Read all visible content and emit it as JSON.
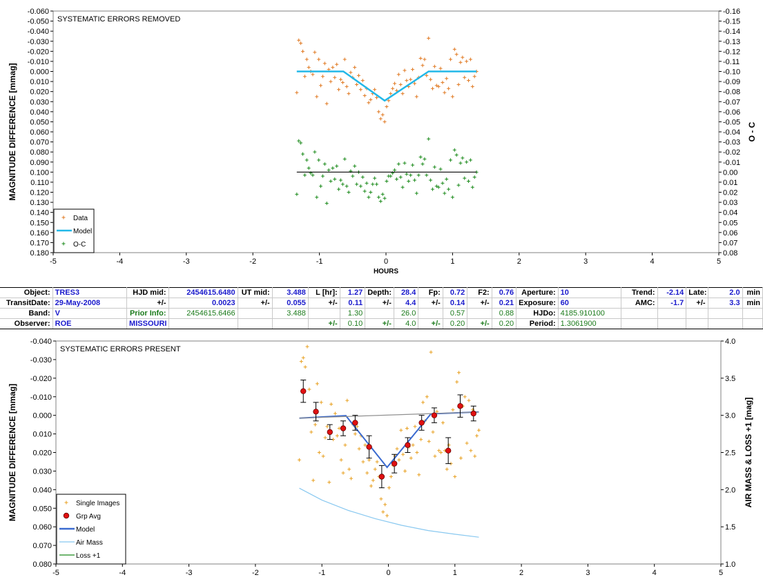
{
  "chart_data": [
    {
      "type": "scatter",
      "title": "SYSTEMATIC ERRORS REMOVED",
      "xlabel": "HOURS",
      "ylabel": "MAGNITUDE DIFFERENCE [mmag]",
      "y2label": "O - C",
      "xlim": [
        -5,
        5
      ],
      "ylim": [
        0.18,
        -0.06
      ],
      "y2lim": [
        0.08,
        -0.16
      ],
      "x_ticks": [
        "-5",
        "-4",
        "-3",
        "-2",
        "-1",
        "0",
        "1",
        "2",
        "3",
        "4",
        "5"
      ],
      "y_ticks": [
        "-0.060",
        "-0.050",
        "-0.040",
        "-0.030",
        "-0.020",
        "-0.010",
        "0.000",
        "0.010",
        "0.020",
        "0.030",
        "0.040",
        "0.050",
        "0.060",
        "0.070",
        "0.080",
        "0.090",
        "0.100",
        "0.110",
        "0.120",
        "0.130",
        "0.140",
        "0.150",
        "0.160",
        "0.170",
        "0.180"
      ],
      "y2_ticks": [
        "-0.16",
        "-0.15",
        "-0.14",
        "-0.13",
        "-0.12",
        "-0.11",
        "-0.10",
        "-0.09",
        "-0.08",
        "-0.07",
        "-0.06",
        "-0.05",
        "-0.04",
        "-0.03",
        "-0.02",
        "-0.01",
        "0.00",
        "0.01",
        "0.02",
        "0.03",
        "0.04",
        "0.05",
        "0.06",
        "0.07",
        "0.08"
      ],
      "grid": false,
      "legend_position": "bottom-left",
      "series": [
        {
          "name": "Data",
          "marker": "+",
          "color": "#e07820",
          "x": [
            -1.34,
            -1.31,
            -1.28,
            -1.25,
            -1.22,
            -1.19,
            -1.16,
            -1.13,
            -1.1,
            -1.07,
            -1.04,
            -1.01,
            -0.98,
            -0.95,
            -0.92,
            -0.89,
            -0.86,
            -0.83,
            -0.8,
            -0.77,
            -0.74,
            -0.71,
            -0.68,
            -0.65,
            -0.62,
            -0.59,
            -0.56,
            -0.53,
            -0.5,
            -0.47,
            -0.44,
            -0.41,
            -0.38,
            -0.35,
            -0.32,
            -0.29,
            -0.26,
            -0.23,
            -0.2,
            -0.17,
            -0.14,
            -0.11,
            -0.08,
            -0.05,
            -0.02,
            0.01,
            0.04,
            0.07,
            0.1,
            0.13,
            0.16,
            0.19,
            0.22,
            0.25,
            0.28,
            0.31,
            0.34,
            0.37,
            0.4,
            0.43,
            0.46,
            0.49,
            0.52,
            0.55,
            0.58,
            0.61,
            0.64,
            0.67,
            0.7,
            0.73,
            0.76,
            0.79,
            0.82,
            0.85,
            0.88,
            0.91,
            0.94,
            0.97,
            1.0,
            1.03,
            1.06,
            1.09,
            1.12,
            1.15,
            1.18,
            1.21,
            1.24,
            1.27,
            1.3,
            1.33,
            1.36
          ],
          "y": [
            0.021,
            -0.031,
            -0.028,
            -0.02,
            0.005,
            -0.012,
            -0.004,
            0.0,
            0.003,
            -0.019,
            0.025,
            -0.012,
            0.014,
            0.005,
            -0.008,
            0.032,
            -0.002,
            0.01,
            -0.004,
            0.006,
            -0.007,
            0.018,
            0.008,
            0.011,
            -0.012,
            0.015,
            0.022,
            0.001,
            0.006,
            -0.004,
            0.013,
            0.004,
            0.018,
            0.009,
            0.024,
            0.017,
            0.031,
            0.028,
            0.022,
            0.018,
            0.026,
            0.04,
            0.047,
            0.043,
            0.05,
            0.035,
            0.029,
            0.022,
            0.017,
            0.012,
            0.019,
            0.003,
            0.013,
            0.022,
            -0.001,
            0.009,
            0.015,
            0.008,
            -0.002,
            0.012,
            0.025,
            0.006,
            -0.013,
            -0.006,
            -0.012,
            0.004,
            -0.033,
            0.008,
            0.017,
            -0.005,
            0.014,
            0.015,
            -0.003,
            0.011,
            0.021,
            0.007,
            0.017,
            -0.012,
            0.025,
            -0.022,
            -0.017,
            0.013,
            -0.009,
            -0.014,
            0.006,
            -0.01,
            0.009,
            -0.012,
            0.015,
            0.005,
            0.0
          ]
        },
        {
          "name": "Model",
          "line": true,
          "color": "#22b8e8",
          "x": [
            -1.34,
            -0.64,
            -0.02,
            0.64,
            1.36
          ],
          "y": [
            0.0,
            0.0,
            0.029,
            0.0,
            0.0
          ]
        },
        {
          "name": "O-C",
          "marker": "+",
          "color": "#1a8a1a",
          "x": [
            -1.34,
            -1.31,
            -1.28,
            -1.25,
            -1.22,
            -1.19,
            -1.16,
            -1.13,
            -1.1,
            -1.07,
            -1.04,
            -1.01,
            -0.98,
            -0.95,
            -0.92,
            -0.89,
            -0.86,
            -0.83,
            -0.8,
            -0.77,
            -0.74,
            -0.71,
            -0.68,
            -0.65,
            -0.62,
            -0.59,
            -0.56,
            -0.53,
            -0.5,
            -0.47,
            -0.44,
            -0.41,
            -0.38,
            -0.35,
            -0.32,
            -0.29,
            -0.26,
            -0.23,
            -0.2,
            -0.17,
            -0.14,
            -0.11,
            -0.08,
            -0.05,
            -0.02,
            0.01,
            0.04,
            0.07,
            0.1,
            0.13,
            0.16,
            0.19,
            0.22,
            0.25,
            0.28,
            0.31,
            0.34,
            0.37,
            0.4,
            0.43,
            0.46,
            0.49,
            0.52,
            0.55,
            0.58,
            0.61,
            0.64,
            0.67,
            0.7,
            0.73,
            0.76,
            0.79,
            0.82,
            0.85,
            0.88,
            0.91,
            0.94,
            0.97,
            1.0,
            1.03,
            1.06,
            1.09,
            1.12,
            1.15,
            1.18,
            1.21,
            1.24,
            1.27,
            1.3,
            1.33,
            1.36
          ],
          "y": [
            0.022,
            -0.031,
            -0.029,
            -0.018,
            0.003,
            -0.012,
            -0.004,
            0.001,
            0.003,
            -0.02,
            0.025,
            -0.012,
            0.014,
            0.004,
            -0.008,
            0.031,
            -0.002,
            0.009,
            -0.004,
            0.007,
            -0.006,
            0.017,
            0.008,
            0.012,
            -0.013,
            0.014,
            0.02,
            -0.001,
            0.004,
            -0.006,
            0.012,
            0.0,
            0.014,
            0.005,
            0.019,
            0.011,
            0.025,
            0.02,
            0.012,
            0.006,
            0.012,
            0.025,
            0.029,
            0.022,
            0.026,
            0.009,
            0.004,
            0.004,
            0.001,
            -0.002,
            0.007,
            -0.008,
            0.005,
            0.015,
            -0.009,
            0.002,
            0.009,
            0.003,
            -0.007,
            0.008,
            0.021,
            0.003,
            -0.015,
            -0.008,
            -0.013,
            0.003,
            -0.033,
            0.008,
            0.017,
            -0.005,
            0.014,
            0.015,
            -0.003,
            0.011,
            0.021,
            0.007,
            0.017,
            -0.012,
            0.025,
            -0.022,
            -0.017,
            0.013,
            -0.009,
            -0.014,
            0.006,
            -0.01,
            0.009,
            -0.012,
            0.015,
            0.005,
            0.0
          ]
        },
        {
          "name": "",
          "line": true,
          "color": "#000000",
          "x": [
            -1.34,
            1.36
          ],
          "y": [
            0.0,
            0.0
          ]
        }
      ]
    },
    {
      "type": "scatter",
      "title": "SYSTEMATIC ERRORS PRESENT",
      "xlabel": "",
      "ylabel": "MAGNITUDE DIFFERENCE [mmag]",
      "y2label": "AIR MASS & LOSS +1 [mag]",
      "xlim": [
        -5,
        5
      ],
      "ylim": [
        0.08,
        -0.04
      ],
      "y2lim": [
        1.0,
        4.0
      ],
      "x_ticks": [
        "-5",
        "-4",
        "-3",
        "-2",
        "-1",
        "0",
        "1",
        "2",
        "3",
        "4",
        "5"
      ],
      "y_ticks": [
        "-0.040",
        "-0.030",
        "-0.020",
        "-0.010",
        "0.000",
        "0.010",
        "0.020",
        "0.030",
        "0.040",
        "0.050",
        "0.060",
        "0.070",
        "0.080"
      ],
      "y2_ticks": [
        "4.0",
        "3.5",
        "3.0",
        "2.5",
        "2.0",
        "1.5",
        "1.0"
      ],
      "grid": false,
      "legend_position": "bottom-left",
      "series": [
        {
          "name": "Single Images",
          "marker": "+",
          "color": "#e8a020",
          "x": [
            -1.34,
            -1.31,
            -1.28,
            -1.25,
            -1.22,
            -1.19,
            -1.16,
            -1.13,
            -1.1,
            -1.07,
            -1.04,
            -1.01,
            -0.98,
            -0.95,
            -0.92,
            -0.89,
            -0.86,
            -0.83,
            -0.8,
            -0.77,
            -0.74,
            -0.71,
            -0.68,
            -0.65,
            -0.62,
            -0.59,
            -0.56,
            -0.53,
            -0.5,
            -0.47,
            -0.44,
            -0.41,
            -0.38,
            -0.35,
            -0.32,
            -0.29,
            -0.26,
            -0.23,
            -0.2,
            -0.17,
            -0.14,
            -0.11,
            -0.08,
            -0.05,
            -0.02,
            0.01,
            0.04,
            0.07,
            0.1,
            0.13,
            0.16,
            0.19,
            0.22,
            0.25,
            0.28,
            0.31,
            0.34,
            0.37,
            0.4,
            0.43,
            0.46,
            0.49,
            0.52,
            0.55,
            0.58,
            0.61,
            0.64,
            0.67,
            0.7,
            0.73,
            0.76,
            0.79,
            0.82,
            0.85,
            0.88,
            0.91,
            0.94,
            0.97,
            1.0,
            1.03,
            1.06,
            1.09,
            1.12,
            1.15,
            1.18,
            1.21,
            1.24,
            1.27,
            1.3,
            1.33,
            1.36
          ],
          "y": [
            0.024,
            -0.029,
            -0.031,
            -0.026,
            -0.037,
            -0.014,
            0.009,
            0.035,
            0.005,
            -0.017,
            0.02,
            -0.007,
            0.022,
            0.012,
            0.006,
            0.036,
            -0.006,
            0.013,
            -0.001,
            0.011,
            0.007,
            0.024,
            0.031,
            0.016,
            -0.008,
            0.029,
            0.034,
            0.005,
            0.01,
            0.006,
            0.018,
            0.011,
            0.025,
            0.016,
            0.031,
            0.024,
            0.038,
            0.035,
            0.029,
            0.025,
            0.033,
            0.045,
            0.052,
            0.048,
            0.054,
            0.039,
            0.033,
            0.027,
            0.022,
            0.018,
            0.024,
            0.008,
            0.021,
            0.03,
            0.007,
            0.017,
            0.023,
            0.016,
            0.006,
            0.02,
            0.032,
            0.013,
            -0.007,
            0.003,
            -0.01,
            0.014,
            -0.034,
            0.009,
            0.022,
            -0.002,
            0.019,
            0.02,
            0.004,
            0.019,
            0.029,
            0.016,
            0.026,
            -0.003,
            0.033,
            -0.018,
            -0.023,
            0.023,
            -0.005,
            -0.01,
            0.015,
            -0.008,
            0.019,
            -0.003,
            0.022,
            0.011,
            0.008
          ]
        },
        {
          "name": "Grp Avg",
          "marker": "circle",
          "color": "#e01010",
          "x": [
            -1.28,
            -1.09,
            -0.88,
            -0.68,
            -0.5,
            -0.29,
            -0.1,
            0.09,
            0.29,
            0.5,
            0.69,
            0.9,
            1.08,
            1.28
          ],
          "y": [
            -0.013,
            -0.002,
            0.009,
            0.007,
            0.004,
            0.017,
            0.033,
            0.026,
            0.016,
            0.004,
            0.0,
            0.019,
            -0.005,
            -0.001
          ],
          "err": [
            0.006,
            0.005,
            0.004,
            0.004,
            0.004,
            0.006,
            0.006,
            0.005,
            0.004,
            0.004,
            0.004,
            0.007,
            0.006,
            0.004
          ]
        },
        {
          "name": "Model",
          "line": true,
          "color": "#3a6ad0",
          "x": [
            -1.34,
            -0.64,
            -0.02,
            0.64,
            1.36
          ],
          "y": [
            0.0015,
            0.0002,
            0.028,
            -0.0008,
            -0.0018
          ]
        },
        {
          "name": "",
          "line": true,
          "color": "#909090",
          "x": [
            -1.34,
            1.36
          ],
          "y": [
            0.0015,
            -0.0018
          ]
        },
        {
          "name": "Air Mass",
          "line": true,
          "axis": "y2",
          "color": "#88c8f0",
          "x": [
            -1.34,
            -1.0,
            -0.6,
            -0.2,
            0.2,
            0.6,
            1.0,
            1.36
          ],
          "y2": [
            2.02,
            1.86,
            1.72,
            1.61,
            1.52,
            1.45,
            1.4,
            1.36
          ]
        },
        {
          "name": "Loss +1",
          "line": true,
          "axis": "y2",
          "color": "#1a8a1a",
          "x": [],
          "y2": []
        }
      ]
    }
  ],
  "info_table": {
    "rows": [
      [
        "Object:",
        "TRES3",
        "HJD mid:",
        "2454615.6480",
        "UT mid:",
        "3.488",
        "L [hr]:",
        "1.27",
        "Depth:",
        "28.4",
        "Fp:",
        "0.72",
        "F2:",
        "0.76",
        "Aperture:",
        "10",
        "Trend:",
        "-2.14",
        "Late:",
        "2.0",
        "min"
      ],
      [
        "TransitDate:",
        "29-May-2008",
        "+/-",
        "0.0023",
        "+/-",
        "0.055",
        "+/-",
        "0.11",
        "+/-",
        "4.4",
        "+/-",
        "0.14",
        "+/-",
        "0.21",
        "Exposure:",
        "60",
        "AMC:",
        "-1.7",
        "+/-",
        "3.3",
        "min"
      ],
      [
        "Band:",
        "V",
        "Prior Info:",
        "2454615.6466",
        "",
        "3.488",
        "",
        "1.30",
        "",
        "26.0",
        "",
        "0.57",
        "",
        "0.88",
        "HJDo:",
        "4185.910100",
        "",
        "",
        "",
        "",
        ""
      ],
      [
        "Observer:",
        "ROE",
        "MISSOURI",
        "",
        "",
        "",
        "+/-",
        "0.10",
        "+/-",
        "4.0",
        "+/-",
        "0.20",
        "+/-",
        "0.20",
        "Period:",
        "1.3061900",
        "",
        "",
        "",
        "",
        ""
      ]
    ]
  }
}
